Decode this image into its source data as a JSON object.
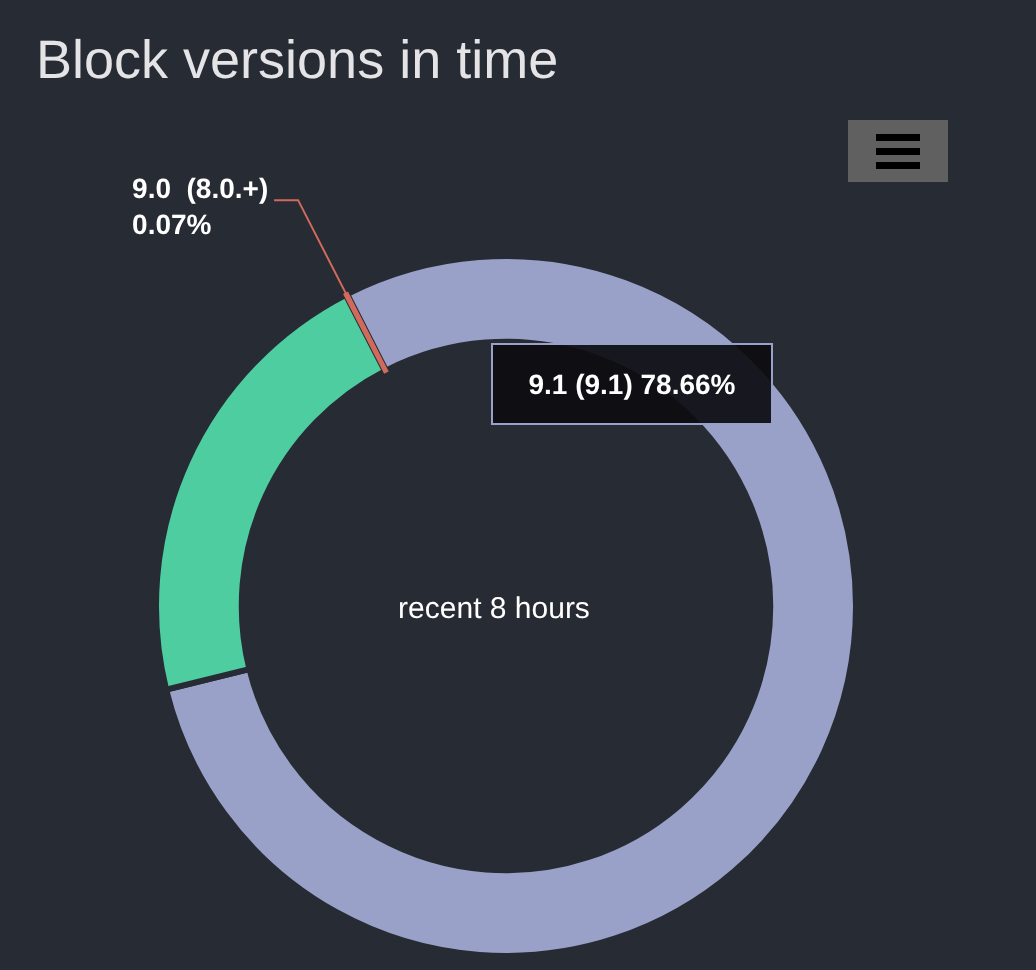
{
  "chart_data": {
    "type": "donut",
    "title": "Block versions in time",
    "subtitle": "recent 8 hours",
    "categories": [
      "9.1 (9.1)",
      null,
      "9.0  (8.0.+)"
    ],
    "values": [
      78.66,
      21.27,
      0.07
    ],
    "colors": [
      "#9aa1c8",
      "#4ecda1",
      "#d06a5c"
    ],
    "value_labels": [
      "78.66%",
      null,
      "0.07%"
    ]
  }
}
